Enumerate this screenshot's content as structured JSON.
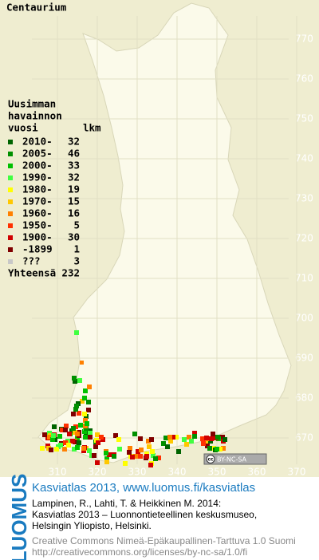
{
  "title": "Centaurium",
  "legend": {
    "heading": [
      "Uusimman",
      "havainnon",
      "vuosi"
    ],
    "count_heading": "lkm",
    "rows": [
      {
        "label": "2010-",
        "count": 32,
        "color": "#006400"
      },
      {
        "label": "2005-",
        "count": 46,
        "color": "#009000"
      },
      {
        "label": "2000-",
        "count": 33,
        "color": "#00c000"
      },
      {
        "label": "1990-",
        "count": 32,
        "color": "#40ff40"
      },
      {
        "label": "1980-",
        "count": 19,
        "color": "#ffff00"
      },
      {
        "label": "1970-",
        "count": 15,
        "color": "#ffc800"
      },
      {
        "label": "1960-",
        "count": 16,
        "color": "#ff8000"
      },
      {
        "label": "1950-",
        "count": 5,
        "color": "#ff3000"
      },
      {
        "label": "1900-",
        "count": 30,
        "color": "#d00000"
      },
      {
        "label": "-1899",
        "count": 1,
        "color": "#800000"
      },
      {
        "label": "???",
        "count": 3,
        "color": "#c8c8c8"
      }
    ],
    "total_label": "Yhteensä",
    "total": 232
  },
  "map": {
    "yticks": [
      770,
      760,
      750,
      740,
      730,
      720,
      710,
      700,
      690,
      680,
      670
    ],
    "xticks": [
      310,
      320,
      330,
      340,
      350,
      360,
      370
    ],
    "license_icon": "cc",
    "license_badge": "BY-NC-SA"
  },
  "footer": {
    "brand": "LUOMUS",
    "headline": "Kasviatlas 2013, www.luomus.fi/kasviatlas",
    "citation": [
      "Lampinen, R., Lahti, T. & Heikkinen M. 2014:",
      "Kasviatlas 2013 – Luonnontieteellinen keskusmuseo,",
      "Helsingin Yliopisto, Helsinki."
    ],
    "license": [
      "Creative Commons Nimeä-Epäkaupallinen-Tarttuva 1.0 Suomi",
      "http://creativecommons.org/licenses/by-nc-sa/1.0/fi"
    ]
  }
}
